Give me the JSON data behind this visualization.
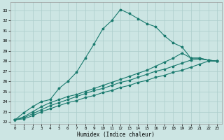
{
  "xlabel": "Humidex (Indice chaleur)",
  "ylabel": "",
  "xlim": [
    -0.5,
    23.5
  ],
  "ylim": [
    21.8,
    33.8
  ],
  "yticks": [
    22,
    23,
    24,
    25,
    26,
    27,
    28,
    29,
    30,
    31,
    32,
    33
  ],
  "xticks": [
    0,
    1,
    2,
    3,
    4,
    5,
    6,
    7,
    8,
    9,
    10,
    11,
    12,
    13,
    14,
    15,
    16,
    17,
    18,
    19,
    20,
    21,
    22,
    23
  ],
  "bg_color": "#cce5e3",
  "line_color": "#1a7a6e",
  "grid_color": "#aaccca",
  "lines": [
    {
      "x": [
        0,
        1,
        2,
        3,
        4,
        5,
        6,
        7,
        8,
        9,
        10,
        11,
        12,
        13,
        14,
        15,
        16,
        17,
        18,
        19,
        20,
        21,
        22,
        23
      ],
      "y": [
        22.2,
        22.9,
        23.5,
        24.0,
        24.2,
        25.3,
        26.0,
        26.9,
        28.3,
        29.7,
        31.2,
        32.0,
        33.1,
        32.7,
        32.2,
        31.7,
        31.4,
        30.5,
        29.8,
        29.4,
        28.3,
        28.3,
        28.1,
        28.0
      ]
    },
    {
      "x": [
        0,
        1,
        2,
        3,
        4,
        5,
        6,
        7,
        8,
        9,
        10,
        11,
        12,
        13,
        14,
        15,
        16,
        17,
        18,
        19,
        20,
        21,
        22,
        23
      ],
      "y": [
        22.2,
        22.5,
        23.0,
        23.5,
        23.9,
        24.2,
        24.5,
        24.7,
        25.0,
        25.3,
        25.6,
        25.9,
        26.2,
        26.5,
        26.8,
        27.1,
        27.5,
        27.9,
        28.3,
        28.8,
        28.3,
        28.3,
        28.1,
        28.0
      ]
    },
    {
      "x": [
        0,
        1,
        2,
        3,
        4,
        5,
        6,
        7,
        8,
        9,
        10,
        11,
        12,
        13,
        14,
        15,
        16,
        17,
        18,
        19,
        20,
        21,
        22,
        23
      ],
      "y": [
        22.2,
        22.4,
        22.8,
        23.2,
        23.6,
        23.9,
        24.2,
        24.5,
        24.8,
        25.1,
        25.3,
        25.6,
        25.9,
        26.1,
        26.4,
        26.7,
        27.0,
        27.2,
        27.5,
        27.8,
        28.1,
        28.2,
        28.1,
        28.0
      ]
    },
    {
      "x": [
        0,
        1,
        2,
        3,
        4,
        5,
        6,
        7,
        8,
        9,
        10,
        11,
        12,
        13,
        14,
        15,
        16,
        17,
        18,
        19,
        20,
        21,
        22,
        23
      ],
      "y": [
        22.2,
        22.3,
        22.6,
        23.0,
        23.3,
        23.6,
        23.9,
        24.1,
        24.4,
        24.6,
        24.9,
        25.1,
        25.4,
        25.6,
        25.9,
        26.1,
        26.4,
        26.6,
        26.9,
        27.1,
        27.4,
        27.7,
        28.0,
        28.0
      ]
    }
  ]
}
